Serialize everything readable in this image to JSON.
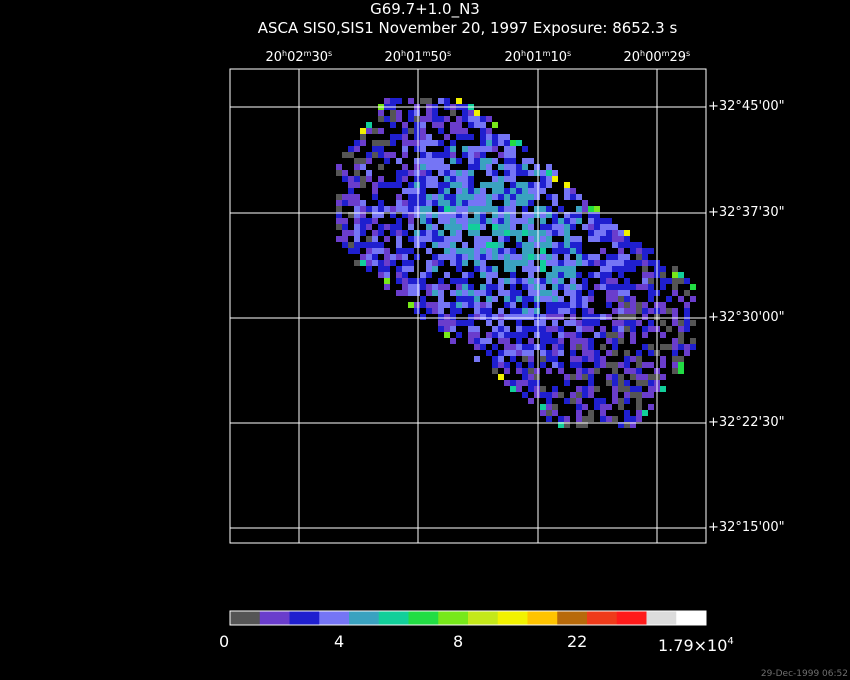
{
  "title": "G69.7+1.0_N3",
  "subtitle": "ASCA SIS0,SIS1 November 20, 1997 Exposure: 8652.3 s",
  "timestamp": "29-Dec-1999 06:52",
  "chart_data": {
    "type": "heatmap",
    "ra_ticks": [
      {
        "h": "20",
        "hu": "h",
        "m": "02",
        "mu": "m",
        "s": "30",
        "su": "s"
      },
      {
        "h": "20",
        "hu": "h",
        "m": "01",
        "mu": "m",
        "s": "50",
        "su": "s"
      },
      {
        "h": "20",
        "hu": "h",
        "m": "01",
        "mu": "m",
        "s": "10",
        "su": "s"
      },
      {
        "h": "20",
        "hu": "h",
        "m": "00",
        "mu": "m",
        "s": "29",
        "su": "s"
      }
    ],
    "dec_ticks": [
      "+32°45'00\"",
      "+32°37'30\"",
      "+32°30'00\"",
      "+32°22'30\"",
      "+32°15'00\""
    ],
    "colorbar": {
      "colors": [
        "#555555",
        "#6a3dcc",
        "#1f1fcf",
        "#7575f5",
        "#3aa2c0",
        "#12cf9a",
        "#22dd44",
        "#77e81a",
        "#c4e81a",
        "#f2f200",
        "#ffc400",
        "#b86a0a",
        "#ef3b1a",
        "#ff1a1a",
        "#dcdcdc",
        "#ffffff"
      ],
      "labels": [
        {
          "text": "0",
          "frac": 0.0
        },
        {
          "text": "4",
          "frac": 0.25
        },
        {
          "text": "8",
          "frac": 0.5
        },
        {
          "text": "22",
          "frac": 0.75
        },
        {
          "text": "1.79×10",
          "sup": "4",
          "frac": 1.0
        }
      ]
    }
  }
}
